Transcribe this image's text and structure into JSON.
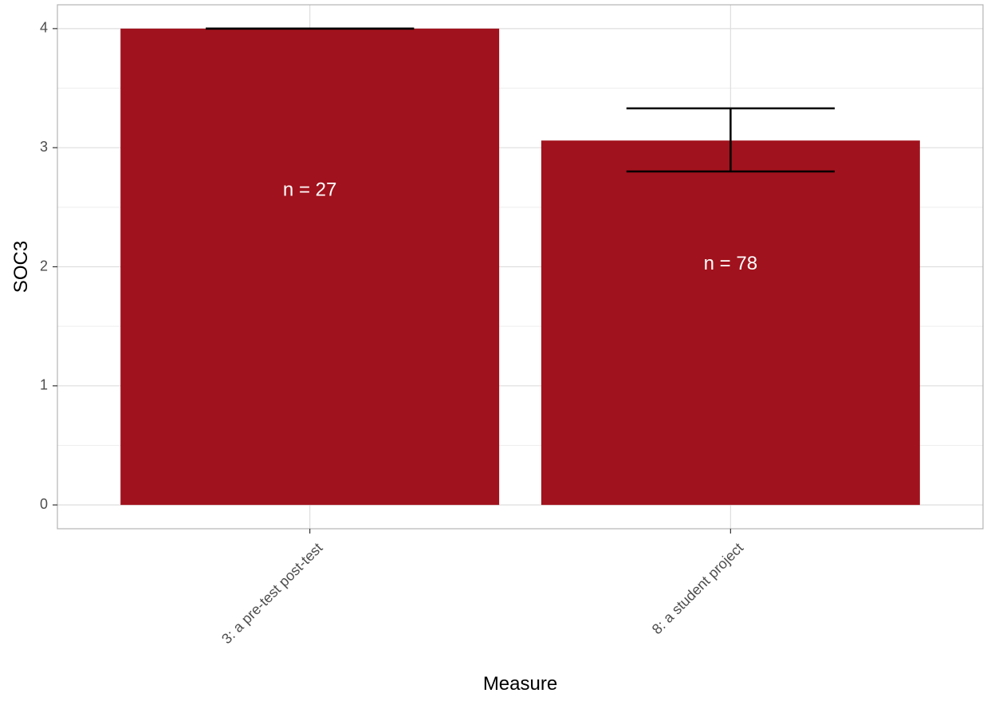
{
  "chart_data": {
    "type": "bar",
    "title": "",
    "xlabel": "Measure",
    "ylabel": "SOC3",
    "categories": [
      "3: a pre-test post-test",
      "8: a student project"
    ],
    "values": [
      4.0,
      3.06
    ],
    "error_bars": [
      {
        "lower": 4.0,
        "upper": 4.0
      },
      {
        "lower": 2.8,
        "upper": 3.33
      }
    ],
    "bar_labels": [
      "n = 27",
      "n = 78"
    ],
    "ylim": [
      -0.2,
      4.2
    ],
    "yticks": [
      0,
      1,
      2,
      3,
      4
    ],
    "grid": true,
    "legend": "none",
    "colors": {
      "bar": "#a0121d",
      "error_bar": "#000000",
      "bar_label": "#ffffff",
      "grid_major": "#dedede",
      "grid_minor": "#eeeeee",
      "panel_border": "#b3b3b3",
      "axis_text": "#4d4d4d",
      "axis_title": "#000000"
    }
  }
}
